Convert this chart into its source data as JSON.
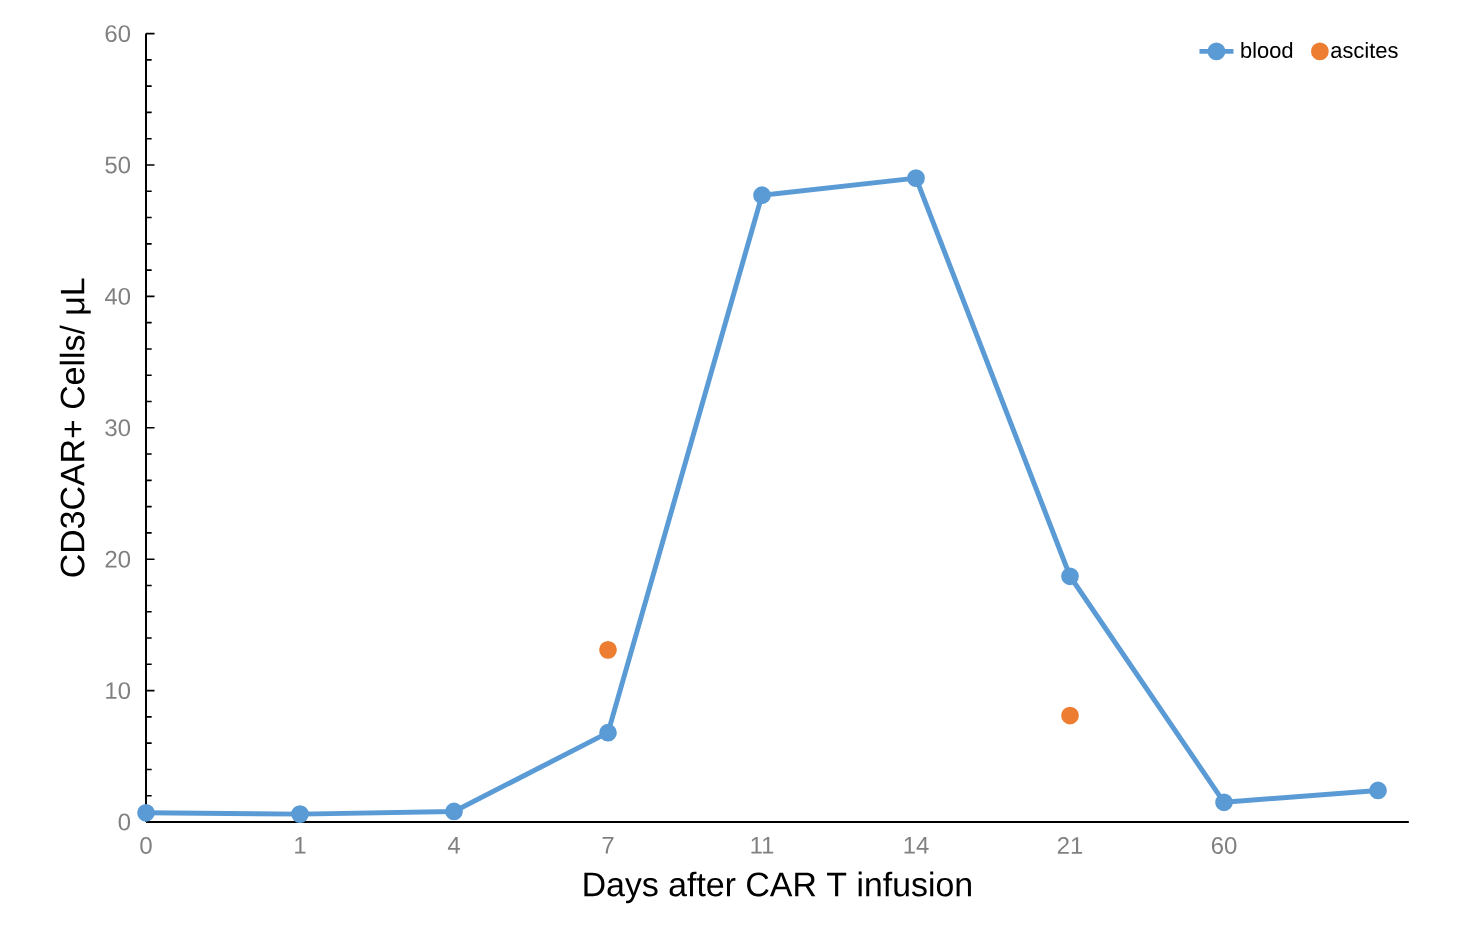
{
  "chart_data": {
    "type": "line",
    "xlabel": "Days after CAR T infusion",
    "ylabel": "CD3CAR+  Cells/ μL",
    "categories": [
      "0",
      "1",
      "4",
      "7",
      "11",
      "14",
      "21",
      "60",
      null
    ],
    "series": [
      {
        "name": "blood",
        "color": "#5b9bd5",
        "values": [
          0.7,
          0.6,
          0.8,
          6.8,
          47.7,
          49.0,
          18.7,
          1.5,
          2.4
        ]
      },
      {
        "name": "ascites",
        "type": "scatter",
        "color": "#ed7d31",
        "values": [
          null,
          null,
          null,
          13.1,
          null,
          null,
          8.1,
          null,
          null
        ]
      }
    ],
    "ylim": [
      0,
      60
    ],
    "yticks": [
      0,
      10,
      20,
      30,
      40,
      50,
      60
    ],
    "grid": false,
    "legend": "top right",
    "marker": "circle"
  }
}
